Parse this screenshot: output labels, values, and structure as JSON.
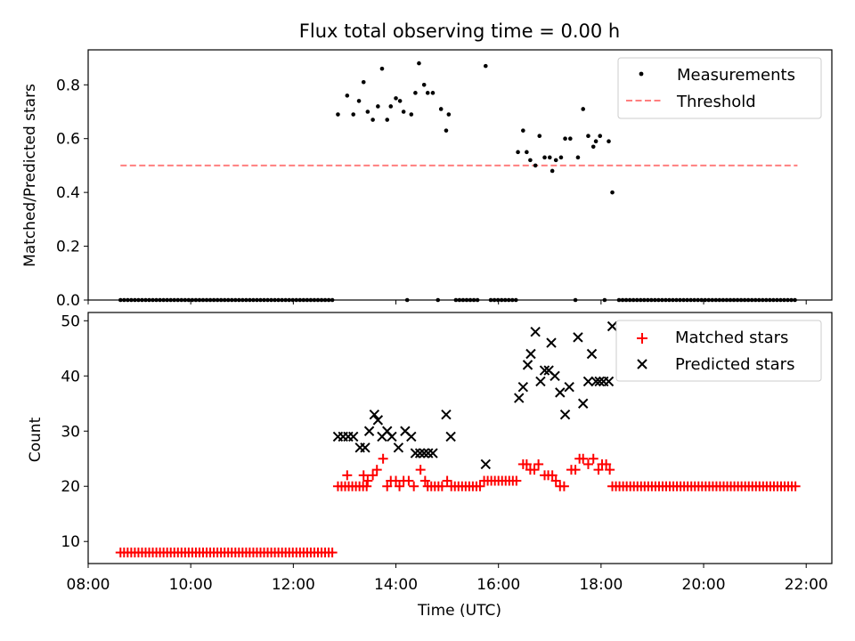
{
  "chart_data": [
    {
      "type": "scatter",
      "title": "Flux total observing time = 0.00 h",
      "xlabel": "",
      "ylabel": "Matched/Predicted stars",
      "ylim": [
        0,
        0.93
      ],
      "yticks": [
        0.0,
        0.2,
        0.4,
        0.6,
        0.8
      ],
      "ytick_labels": [
        "0.0",
        "0.2",
        "0.4",
        "0.6",
        "0.8"
      ],
      "legend": {
        "placement": "upper-right",
        "entries": [
          "Measurements",
          "Threshold"
        ]
      },
      "series": [
        {
          "name": "Measurements",
          "marker": "dot",
          "color": "#000000",
          "points": [
            [
              12.87,
              0.69
            ],
            [
              13.05,
              0.76
            ],
            [
              13.17,
              0.69
            ],
            [
              13.28,
              0.74
            ],
            [
              13.37,
              0.81
            ],
            [
              13.45,
              0.7
            ],
            [
              13.55,
              0.67
            ],
            [
              13.65,
              0.72
            ],
            [
              13.73,
              0.86
            ],
            [
              13.83,
              0.67
            ],
            [
              13.9,
              0.72
            ],
            [
              14.0,
              0.75
            ],
            [
              14.08,
              0.74
            ],
            [
              14.15,
              0.7
            ],
            [
              14.3,
              0.69
            ],
            [
              14.38,
              0.77
            ],
            [
              14.45,
              0.88
            ],
            [
              14.55,
              0.8
            ],
            [
              14.62,
              0.77
            ],
            [
              14.72,
              0.77
            ],
            [
              14.88,
              0.71
            ],
            [
              14.98,
              0.63
            ],
            [
              15.03,
              0.69
            ],
            [
              15.75,
              0.87
            ],
            [
              16.38,
              0.55
            ],
            [
              16.48,
              0.63
            ],
            [
              16.55,
              0.55
            ],
            [
              16.62,
              0.52
            ],
            [
              16.72,
              0.5
            ],
            [
              16.8,
              0.61
            ],
            [
              16.9,
              0.53
            ],
            [
              17.0,
              0.53
            ],
            [
              17.05,
              0.48
            ],
            [
              17.12,
              0.52
            ],
            [
              17.22,
              0.53
            ],
            [
              17.3,
              0.6
            ],
            [
              17.4,
              0.6
            ],
            [
              17.55,
              0.53
            ],
            [
              17.65,
              0.71
            ],
            [
              17.75,
              0.61
            ],
            [
              17.85,
              0.57
            ],
            [
              17.9,
              0.59
            ],
            [
              17.98,
              0.61
            ],
            [
              18.15,
              0.59
            ],
            [
              18.22,
              0.4
            ]
          ],
          "zero_points": [
            [
              8.63,
              12.8
            ],
            [
              14.22,
              14.22
            ],
            [
              14.82,
              14.82
            ],
            [
              15.17,
              15.65
            ],
            [
              15.85,
              16.38
            ],
            [
              17.5,
              17.5
            ],
            [
              18.07,
              18.07
            ],
            [
              18.35,
              21.83
            ]
          ]
        },
        {
          "name": "Threshold",
          "style": "dashed",
          "color": "#ff7f7f",
          "x": [
            8.63,
            21.83
          ],
          "y": [
            0.5,
            0.5
          ]
        }
      ]
    },
    {
      "type": "scatter",
      "xlabel": "Time (UTC)",
      "ylabel": "Count",
      "xlim": [
        8.0,
        22.5
      ],
      "ylim": [
        6,
        51.5
      ],
      "xticks": [
        8,
        10,
        12,
        14,
        16,
        18,
        20,
        22
      ],
      "xtick_labels": [
        "08:00",
        "10:00",
        "12:00",
        "14:00",
        "16:00",
        "18:00",
        "20:00",
        "22:00"
      ],
      "yticks": [
        10,
        20,
        30,
        40,
        50
      ],
      "ytick_labels": [
        "10",
        "20",
        "30",
        "40",
        "50"
      ],
      "legend": {
        "placement": "upper-right",
        "entries": [
          "Matched stars",
          "Predicted stars"
        ]
      },
      "series": [
        {
          "name": "Matched stars",
          "marker": "plus",
          "color": "#ff0000",
          "runs": [
            {
              "from": 8.63,
              "to": 12.8,
              "value": 8
            },
            {
              "from": 12.87,
              "to": 13.45,
              "value": 20
            },
            {
              "from": 14.62,
              "to": 14.95,
              "value": 20
            },
            {
              "from": 15.08,
              "to": 15.65,
              "value": 20
            },
            {
              "from": 15.72,
              "to": 16.38,
              "value": 21
            },
            {
              "from": 18.22,
              "to": 21.83,
              "value": 20
            }
          ],
          "points": [
            [
              13.05,
              22
            ],
            [
              13.37,
              22
            ],
            [
              13.45,
              21
            ],
            [
              13.55,
              22
            ],
            [
              13.63,
              23
            ],
            [
              13.75,
              25
            ],
            [
              13.83,
              20
            ],
            [
              13.9,
              21
            ],
            [
              14.0,
              21
            ],
            [
              14.07,
              20
            ],
            [
              14.15,
              21
            ],
            [
              14.25,
              21
            ],
            [
              14.35,
              20
            ],
            [
              14.48,
              23
            ],
            [
              14.57,
              21
            ],
            [
              15.0,
              21
            ],
            [
              16.48,
              24
            ],
            [
              16.55,
              24
            ],
            [
              16.62,
              23
            ],
            [
              16.7,
              23
            ],
            [
              16.78,
              24
            ],
            [
              16.9,
              22
            ],
            [
              16.97,
              22
            ],
            [
              17.05,
              22
            ],
            [
              17.12,
              21
            ],
            [
              17.2,
              20
            ],
            [
              17.28,
              20
            ],
            [
              17.42,
              23
            ],
            [
              17.5,
              23
            ],
            [
              17.58,
              25
            ],
            [
              17.65,
              25
            ],
            [
              17.75,
              24
            ],
            [
              17.85,
              25
            ],
            [
              17.95,
              23
            ],
            [
              18.02,
              24
            ],
            [
              18.1,
              24
            ],
            [
              18.17,
              23
            ]
          ]
        },
        {
          "name": "Predicted stars",
          "marker": "x",
          "color": "#000000",
          "points": [
            [
              12.87,
              29
            ],
            [
              12.97,
              29
            ],
            [
              13.07,
              29
            ],
            [
              13.17,
              29
            ],
            [
              13.3,
              27
            ],
            [
              13.4,
              27
            ],
            [
              13.48,
              30
            ],
            [
              13.58,
              33
            ],
            [
              13.65,
              32
            ],
            [
              13.73,
              29
            ],
            [
              13.83,
              30
            ],
            [
              13.92,
              29
            ],
            [
              14.05,
              27
            ],
            [
              14.18,
              30
            ],
            [
              14.3,
              29
            ],
            [
              14.38,
              26
            ],
            [
              14.47,
              26
            ],
            [
              14.55,
              26
            ],
            [
              14.63,
              26
            ],
            [
              14.72,
              26
            ],
            [
              14.98,
              33
            ],
            [
              15.07,
              29
            ],
            [
              15.75,
              24
            ],
            [
              16.4,
              36
            ],
            [
              16.48,
              38
            ],
            [
              16.57,
              42
            ],
            [
              16.63,
              44
            ],
            [
              16.72,
              48
            ],
            [
              16.82,
              39
            ],
            [
              16.9,
              41
            ],
            [
              16.98,
              41
            ],
            [
              17.03,
              46
            ],
            [
              17.1,
              40
            ],
            [
              17.2,
              37
            ],
            [
              17.3,
              33
            ],
            [
              17.38,
              38
            ],
            [
              17.55,
              47
            ],
            [
              17.65,
              35
            ],
            [
              17.75,
              39
            ],
            [
              17.82,
              44
            ],
            [
              17.9,
              39
            ],
            [
              17.97,
              39
            ],
            [
              18.05,
              39
            ],
            [
              18.15,
              39
            ],
            [
              18.22,
              49
            ]
          ]
        }
      ]
    }
  ]
}
